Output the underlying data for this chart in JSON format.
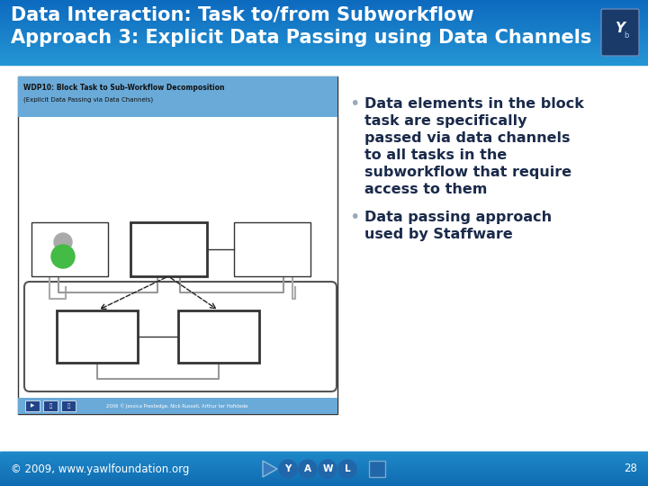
{
  "title_line1": "Data Interaction: Task to/from Subworkflow",
  "title_line2": "Approach 3: Explicit Data Passing using Data Channels",
  "title_text_color": "#ffffff",
  "body_bg_color": "#ffffff",
  "footer_text": "© 2009, www.yawlfoundation.org",
  "footer_page": "28",
  "bullet_text_color": "#1a2a4a",
  "bullet_dot_color": "#9aaabc",
  "bullet1_lines": [
    "Data elements in the block",
    "task are specifically",
    "passed via data channels",
    "to all tasks in the",
    "subworkflow that require",
    "access to them"
  ],
  "bullet2_lines": [
    "Data passing approach",
    "used by Staffware"
  ],
  "header_top": "#0d6abf",
  "header_bottom": "#2596d4",
  "footer_top": "#1e88c8",
  "footer_bottom": "#0f6ab0",
  "thumb_header_text1": "WDP10: Block Task to Sub-Workflow Decomposition",
  "thumb_header_text2": "(Explicit Data Passing via Data Channels)",
  "thumb_footer_text": "2006 © Jessica Prestedge, Nick Russell, Arthur ter Hofstede",
  "thumb_bg": "#f8f8fc",
  "thumb_header_color": "#6aaad8",
  "thumb_footer_color": "#6aaad8"
}
